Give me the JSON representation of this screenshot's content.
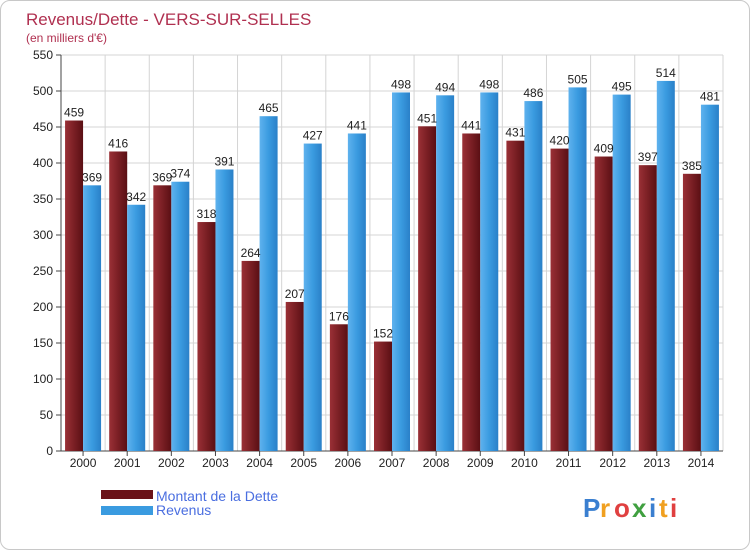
{
  "chart_data": {
    "type": "bar",
    "title": "Revenus/Dette - VERS-SUR-SELLES",
    "subtitle": "(en milliers d'€)",
    "categories": [
      "2000",
      "2001",
      "2002",
      "2003",
      "2004",
      "2005",
      "2006",
      "2007",
      "2008",
      "2009",
      "2010",
      "2011",
      "2012",
      "2013",
      "2014"
    ],
    "series": [
      {
        "name": "Montant de la Dette",
        "color": "#7a1f24",
        "values": [
          459,
          416,
          369,
          318,
          264,
          207,
          176,
          152,
          451,
          441,
          431,
          420,
          409,
          397,
          385
        ]
      },
      {
        "name": "Revenus",
        "color": "#3a9be0",
        "values": [
          369,
          342,
          374,
          391,
          465,
          427,
          441,
          498,
          494,
          498,
          486,
          505,
          495,
          514,
          481
        ]
      }
    ],
    "ylim": [
      0,
      550
    ],
    "yticks": [
      0,
      50,
      100,
      150,
      200,
      250,
      300,
      350,
      400,
      450,
      500,
      550
    ],
    "grid": true,
    "legend_position": "bottom-left"
  },
  "logo": {
    "letters": [
      "P",
      "r",
      "o",
      "x",
      "i",
      "t",
      "i"
    ],
    "colors": [
      "#3a7fd0",
      "#f0a020",
      "#e04040",
      "#40a040",
      "#3a7fd0",
      "#f0a020",
      "#e04040"
    ]
  }
}
